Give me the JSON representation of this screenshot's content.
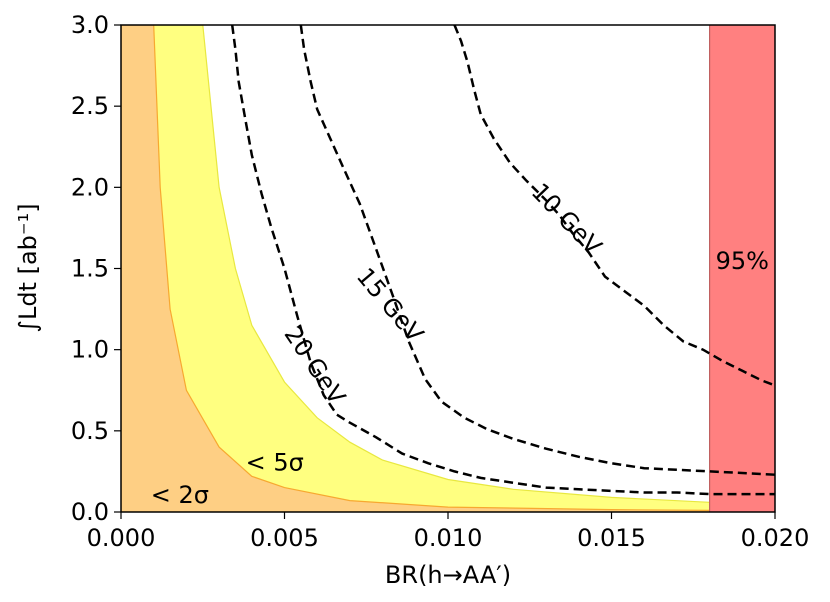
{
  "chart_data": {
    "type": "area",
    "xlabel": "BR(h→AA′)",
    "ylabel": "∫Ldt [ab⁻¹]",
    "xlim": [
      0.0,
      0.02
    ],
    "ylim": [
      0.0,
      3.0
    ],
    "x_ticks": [
      "0.000",
      "0.005",
      "0.010",
      "0.015",
      "0.020"
    ],
    "x_tick_values": [
      0.0,
      0.005,
      0.01,
      0.015,
      0.02
    ],
    "y_ticks": [
      "0.0",
      "0.5",
      "1.0",
      "1.5",
      "2.0",
      "2.5",
      "3.0"
    ],
    "y_tick_values": [
      0.0,
      0.5,
      1.0,
      1.5,
      2.0,
      2.5,
      3.0
    ],
    "grid": false,
    "regions": [
      {
        "name": "< 2σ",
        "label": "< 2σ",
        "color": "#fecf84",
        "edge_color": "#f7a830",
        "boundary": [
          [
            0.001,
            3.0
          ],
          [
            0.0012,
            2.0
          ],
          [
            0.0015,
            1.25
          ],
          [
            0.002,
            0.75
          ],
          [
            0.003,
            0.4
          ],
          [
            0.004,
            0.22
          ],
          [
            0.005,
            0.15
          ],
          [
            0.007,
            0.07
          ],
          [
            0.01,
            0.03
          ],
          [
            0.015,
            0.015
          ],
          [
            0.018,
            0.01
          ]
        ]
      },
      {
        "name": "< 5σ",
        "label": "< 5σ",
        "color": "#ffff80",
        "edge_color": "#e8e840",
        "boundary": [
          [
            0.0025,
            3.0
          ],
          [
            0.003,
            2.0
          ],
          [
            0.0035,
            1.5
          ],
          [
            0.004,
            1.15
          ],
          [
            0.005,
            0.8
          ],
          [
            0.006,
            0.58
          ],
          [
            0.007,
            0.43
          ],
          [
            0.008,
            0.32
          ],
          [
            0.01,
            0.2
          ],
          [
            0.012,
            0.14
          ],
          [
            0.015,
            0.09
          ],
          [
            0.018,
            0.06
          ]
        ]
      },
      {
        "name": "95%",
        "label": "95%",
        "color": "#ff8080",
        "x_from": 0.018,
        "x_to": 0.02
      }
    ],
    "series": [
      {
        "name": "10 GeV",
        "style": "dashed",
        "color": "#000000",
        "x": [
          0.0102,
          0.0104,
          0.0106,
          0.0108,
          0.011,
          0.0114,
          0.0119,
          0.0124,
          0.013,
          0.0134,
          0.0138,
          0.0143,
          0.0148,
          0.0154,
          0.016,
          0.0166,
          0.0172,
          0.0178,
          0.0184,
          0.019,
          0.0196,
          0.02
        ],
        "y": [
          3.0,
          2.9,
          2.77,
          2.6,
          2.45,
          2.3,
          2.15,
          2.04,
          1.92,
          1.83,
          1.72,
          1.6,
          1.45,
          1.36,
          1.27,
          1.15,
          1.05,
          1.0,
          0.93,
          0.87,
          0.81,
          0.78
        ]
      },
      {
        "name": "15 GeV",
        "style": "dashed",
        "color": "#000000",
        "x": [
          0.0055,
          0.0056,
          0.0058,
          0.006,
          0.0064,
          0.0068,
          0.0073,
          0.0078,
          0.0083,
          0.0088,
          0.0093,
          0.0098,
          0.0105,
          0.0112,
          0.012,
          0.013,
          0.014,
          0.015,
          0.016,
          0.017,
          0.018,
          0.019,
          0.02
        ],
        "y": [
          3.0,
          2.85,
          2.65,
          2.48,
          2.3,
          2.12,
          1.9,
          1.62,
          1.34,
          1.05,
          0.82,
          0.68,
          0.58,
          0.51,
          0.45,
          0.39,
          0.34,
          0.3,
          0.27,
          0.26,
          0.25,
          0.24,
          0.23
        ]
      },
      {
        "name": "20 GeV",
        "style": "dashed",
        "color": "#000000",
        "x": [
          0.0034,
          0.0035,
          0.0036,
          0.0038,
          0.004,
          0.0043,
          0.0046,
          0.005,
          0.0054,
          0.0058,
          0.0062,
          0.0066,
          0.007,
          0.0078,
          0.0086,
          0.0094,
          0.0102,
          0.011,
          0.012,
          0.013,
          0.014,
          0.015,
          0.016,
          0.017,
          0.018,
          0.019,
          0.02
        ],
        "y": [
          3.0,
          2.85,
          2.65,
          2.42,
          2.2,
          1.96,
          1.75,
          1.5,
          1.2,
          0.92,
          0.72,
          0.6,
          0.55,
          0.46,
          0.36,
          0.3,
          0.25,
          0.21,
          0.18,
          0.15,
          0.14,
          0.13,
          0.12,
          0.12,
          0.11,
          0.11,
          0.11
        ]
      }
    ],
    "annotations": [
      {
        "text": "10 GeV",
        "x": 0.0136,
        "y": 1.8,
        "rotation": 46
      },
      {
        "text": "15 GeV",
        "x": 0.0082,
        "y": 1.27,
        "rotation": 50
      },
      {
        "text": "20 GeV",
        "x": 0.0059,
        "y": 0.9,
        "rotation": 56
      },
      {
        "text": "< 5σ",
        "x": 0.0047,
        "y": 0.3,
        "rotation": 0
      },
      {
        "text": "< 2σ",
        "x": 0.0018,
        "y": 0.1,
        "rotation": 0
      },
      {
        "text": "95%",
        "x": 0.019,
        "y": 1.54,
        "rotation": 0
      }
    ]
  }
}
